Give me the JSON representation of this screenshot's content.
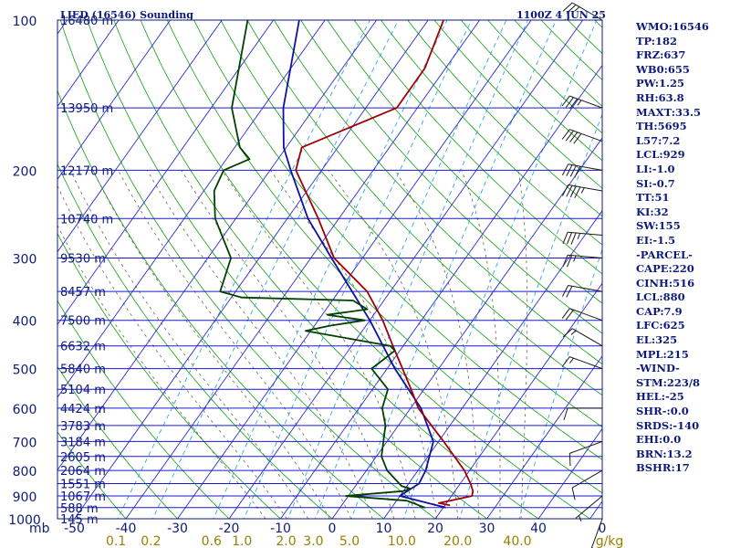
{
  "chart_data": {
    "type": "line",
    "title": "LIED (16546) Sounding",
    "timestamp": "1100Z  4 JUN 25",
    "xlabel": "",
    "ylabel": "mb",
    "pressure_levels": [
      100,
      200,
      300,
      400,
      500,
      600,
      700,
      800,
      900,
      1000
    ],
    "temperature_ticks": [
      -50,
      -40,
      -30,
      -20,
      -10,
      0,
      10,
      20,
      30,
      40,
      0
    ],
    "temperature_axis_label": "mb",
    "mixing_ratio_ticks": [
      "0.1",
      "0.2",
      "0.6",
      "1.0",
      "2.0",
      "3.0",
      "5.0",
      "10.0",
      "20.0",
      "40.0"
    ],
    "mixing_ratio_unit": "g/kg",
    "height_labels": [
      {
        "p": 100,
        "label": "16480 m"
      },
      {
        "p": 150,
        "label": "13950 m"
      },
      {
        "p": 200,
        "label": "12170 m"
      },
      {
        "p": 250,
        "label": "10740 m"
      },
      {
        "p": 300,
        "label": "9530 m"
      },
      {
        "p": 350,
        "label": "8457 m"
      },
      {
        "p": 400,
        "label": "7500 m"
      },
      {
        "p": 450,
        "label": "6632 m"
      },
      {
        "p": 500,
        "label": "5840 m"
      },
      {
        "p": 550,
        "label": "5104 m"
      },
      {
        "p": 600,
        "label": "4424 m"
      },
      {
        "p": 650,
        "label": "3783 m"
      },
      {
        "p": 700,
        "label": "3184 m"
      },
      {
        "p": 750,
        "label": "2605 m"
      },
      {
        "p": 800,
        "label": "2064 m"
      },
      {
        "p": 850,
        "label": "1551 m"
      },
      {
        "p": 900,
        "label": "1067 m"
      },
      {
        "p": 950,
        "label": "588 m"
      },
      {
        "p": 1000,
        "label": "145 m"
      }
    ],
    "series": [
      {
        "id": "parcel",
        "color": "#1010a0",
        "points": [
          [
            950,
            20.5
          ],
          [
            900,
            10.0
          ],
          [
            850,
            12.0
          ],
          [
            800,
            11.5
          ],
          [
            700,
            9.0
          ],
          [
            600,
            2.0
          ],
          [
            500,
            -8.5
          ],
          [
            400,
            -20.0
          ],
          [
            300,
            -36.0
          ],
          [
            250,
            -46.0
          ],
          [
            200,
            -56.0
          ],
          [
            180,
            -60.5
          ],
          [
            150,
            -66.0
          ],
          [
            100,
            -75.0
          ]
        ]
      },
      {
        "id": "temperature",
        "color": "#a00000",
        "points": [
          [
            940,
            21.0
          ],
          [
            930,
            18.5
          ],
          [
            925,
            19.5
          ],
          [
            900,
            24.0
          ],
          [
            880,
            23.5
          ],
          [
            850,
            22.0
          ],
          [
            800,
            19.0
          ],
          [
            700,
            11.0
          ],
          [
            600,
            1.5
          ],
          [
            550,
            -2.5
          ],
          [
            500,
            -7.0
          ],
          [
            450,
            -12.0
          ],
          [
            400,
            -17.5
          ],
          [
            350,
            -24.5
          ],
          [
            300,
            -35.5
          ],
          [
            250,
            -44.0
          ],
          [
            200,
            -55.0
          ],
          [
            180,
            -57.0
          ],
          [
            150,
            -44.0
          ],
          [
            125,
            -44.0
          ],
          [
            100,
            -47.0
          ]
        ]
      },
      {
        "id": "dewpoint",
        "color": "#004000",
        "points": [
          [
            950,
            16.5
          ],
          [
            940,
            15.0
          ],
          [
            920,
            12.0
          ],
          [
            900,
            -0.5
          ],
          [
            880,
            10.0
          ],
          [
            870,
            11.0
          ],
          [
            860,
            9.0
          ],
          [
            800,
            4.0
          ],
          [
            750,
            1.0
          ],
          [
            650,
            -2.5
          ],
          [
            600,
            -5.5
          ],
          [
            550,
            -7.0
          ],
          [
            500,
            -13.0
          ],
          [
            480,
            -12.0
          ],
          [
            460,
            -11.0
          ],
          [
            450,
            -12.5
          ],
          [
            420,
            -31.0
          ],
          [
            410,
            -27.0
          ],
          [
            400,
            -21.0
          ],
          [
            390,
            -29.0
          ],
          [
            380,
            -22.0
          ],
          [
            365,
            -26.0
          ],
          [
            360,
            -48.0
          ],
          [
            350,
            -53.0
          ],
          [
            300,
            -55.5
          ],
          [
            250,
            -64.0
          ],
          [
            220,
            -68.0
          ],
          [
            200,
            -69.0
          ],
          [
            190,
            -65.5
          ],
          [
            180,
            -69.0
          ],
          [
            150,
            -76.0
          ],
          [
            100,
            -85.0
          ]
        ]
      }
    ],
    "winds": [
      {
        "p": 100,
        "dir": 300,
        "spd": 25
      },
      {
        "p": 150,
        "dir": 290,
        "spd": 35
      },
      {
        "p": 175,
        "dir": 290,
        "spd": 40
      },
      {
        "p": 200,
        "dir": 280,
        "spd": 40
      },
      {
        "p": 220,
        "dir": 280,
        "spd": 45
      },
      {
        "p": 270,
        "dir": 275,
        "spd": 35
      },
      {
        "p": 300,
        "dir": 275,
        "spd": 25
      },
      {
        "p": 350,
        "dir": 280,
        "spd": 20
      },
      {
        "p": 400,
        "dir": 290,
        "spd": 20
      },
      {
        "p": 450,
        "dir": 300,
        "spd": 15
      },
      {
        "p": 500,
        "dir": 290,
        "spd": 15
      },
      {
        "p": 600,
        "dir": 270,
        "spd": 10
      },
      {
        "p": 700,
        "dir": 250,
        "spd": 10
      },
      {
        "p": 800,
        "dir": 240,
        "spd": 10
      },
      {
        "p": 900,
        "dir": 230,
        "spd": 5
      },
      {
        "p": 1000,
        "dir": 200,
        "spd": 5
      }
    ],
    "colors": {
      "border": "#0d1a7a",
      "isobar": "#1a1ad0",
      "isotherm": "#2a2ad0",
      "dry_adiabat": "#10a010",
      "moist_adiabat": "#6a6a48",
      "mixing_ratio": "#30a8e0",
      "mixing_ratio_text": "#9a8000",
      "wind_barb": "#1a1a1a"
    }
  },
  "indices": [
    "WMO:16546",
    "TP:182",
    "FRZ:637",
    "WB0:655",
    "PW:1.25",
    "RH:63.8",
    "MAXT:33.5",
    "TH:5695",
    "L57:7.2",
    "LCL:929",
    "LI:-1.0",
    "SI:-0.7",
    "TT:51",
    "KI:32",
    "SW:155",
    "EI:-1.5",
    "-PARCEL-",
    "CAPE:220",
    "CINH:516",
    "LCL:880",
    "CAP:7.9",
    "LFC:625",
    "EL:325",
    "MPL:215",
    "-WIND-",
    "STM:223/8",
    "HEL:-25",
    "SHR-:0.0",
    "SRDS:-140",
    "EHI:0.0",
    "BRN:13.2",
    "BSHR:17"
  ]
}
